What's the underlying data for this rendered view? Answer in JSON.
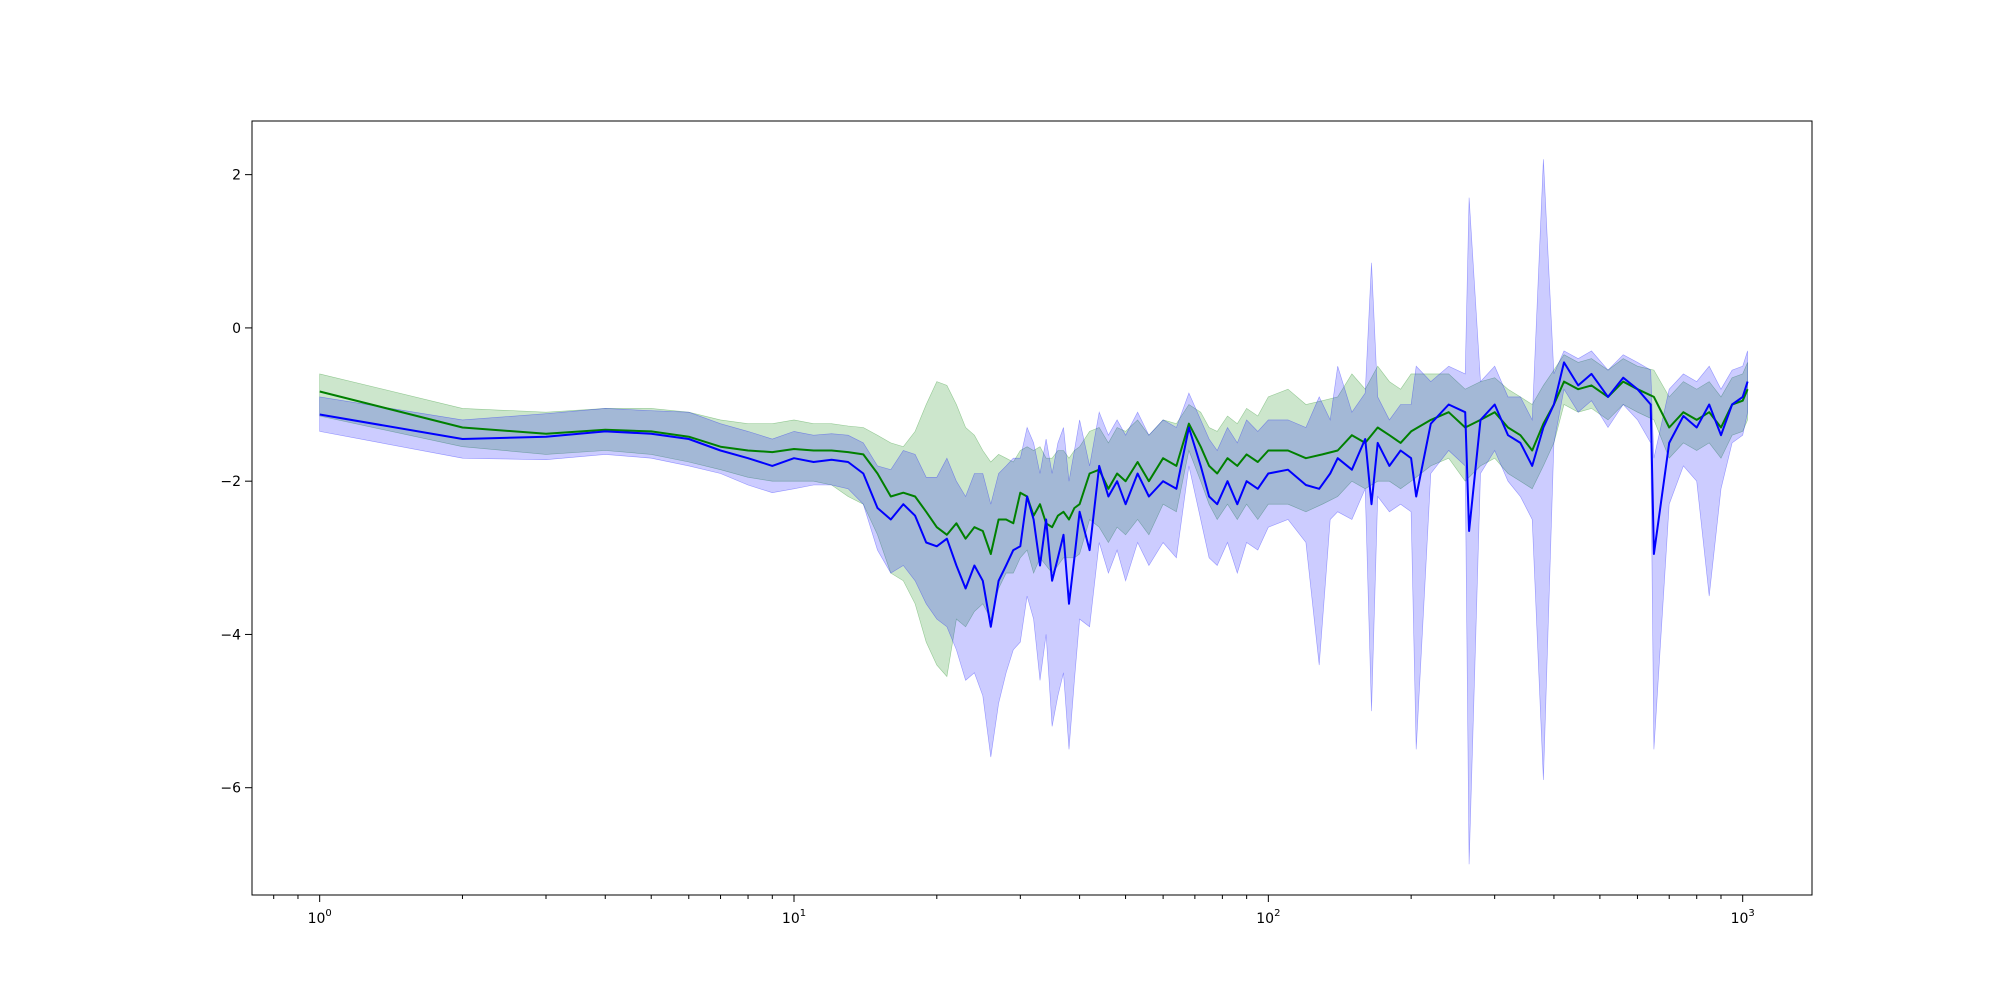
{
  "chart_data": {
    "type": "line",
    "title": "",
    "xlabel": "",
    "ylabel": "",
    "x_scale": "log",
    "xlim": [
      0.72,
      1400
    ],
    "ylim": [
      -7.4,
      2.7
    ],
    "grid": false,
    "x_ticks": [
      {
        "value": 1,
        "base": "10",
        "exp": "0"
      },
      {
        "value": 10,
        "base": "10",
        "exp": "1"
      },
      {
        "value": 100,
        "base": "10",
        "exp": "2"
      },
      {
        "value": 1000,
        "base": "10",
        "exp": "3"
      }
    ],
    "y_ticks": [
      {
        "value": 2,
        "label": "2"
      },
      {
        "value": 0,
        "label": "0"
      },
      {
        "value": -2,
        "label": "−2"
      },
      {
        "value": -4,
        "label": "−4"
      },
      {
        "value": -6,
        "label": "−6"
      }
    ],
    "colors": {
      "green_line": "#008000",
      "green_band": "#008000",
      "blue_line": "#0000ff",
      "blue_band": "#0000ff",
      "band_alpha": 0.2
    },
    "series": [
      {
        "color": "green",
        "x": [
          1,
          2,
          3,
          4,
          5,
          6,
          7,
          8,
          9,
          10,
          11,
          12,
          13,
          14,
          15,
          16,
          17,
          18,
          19,
          20,
          21,
          22,
          23,
          24,
          25,
          26,
          27,
          28,
          29,
          30,
          31,
          32,
          33,
          34,
          35,
          36,
          37,
          38,
          39,
          40,
          42,
          44,
          46,
          48,
          50,
          53,
          56,
          60,
          64,
          68,
          72,
          75,
          78,
          82,
          86,
          90,
          95,
          100,
          110,
          120,
          130,
          140,
          150,
          160,
          170,
          180,
          190,
          200,
          220,
          240,
          260,
          280,
          300,
          320,
          340,
          360,
          380,
          400,
          420,
          450,
          480,
          520,
          560,
          600,
          650,
          700,
          750,
          800,
          850,
          900,
          950,
          1000,
          1024
        ],
        "y": [
          -0.83,
          -1.3,
          -1.38,
          -1.33,
          -1.35,
          -1.42,
          -1.55,
          -1.6,
          -1.62,
          -1.58,
          -1.6,
          -1.6,
          -1.62,
          -1.65,
          -1.9,
          -2.2,
          -2.15,
          -2.2,
          -2.4,
          -2.6,
          -2.7,
          -2.55,
          -2.75,
          -2.6,
          -2.65,
          -2.95,
          -2.5,
          -2.5,
          -2.55,
          -2.15,
          -2.2,
          -2.45,
          -2.3,
          -2.55,
          -2.6,
          -2.45,
          -2.4,
          -2.5,
          -2.35,
          -2.3,
          -1.9,
          -1.85,
          -2.1,
          -1.9,
          -2.0,
          -1.75,
          -2.0,
          -1.7,
          -1.8,
          -1.25,
          -1.55,
          -1.8,
          -1.9,
          -1.7,
          -1.8,
          -1.65,
          -1.75,
          -1.6,
          -1.6,
          -1.7,
          -1.65,
          -1.6,
          -1.4,
          -1.5,
          -1.3,
          -1.4,
          -1.5,
          -1.35,
          -1.2,
          -1.1,
          -1.3,
          -1.2,
          -1.1,
          -1.3,
          -1.4,
          -1.6,
          -1.25,
          -1.0,
          -0.7,
          -0.8,
          -0.75,
          -0.9,
          -0.7,
          -0.8,
          -0.9,
          -1.3,
          -1.1,
          -1.2,
          -1.1,
          -1.3,
          -1.0,
          -0.95,
          -0.8
        ],
        "lower": [
          -1.15,
          -1.55,
          -1.65,
          -1.6,
          -1.65,
          -1.75,
          -1.85,
          -1.95,
          -2.0,
          -2.0,
          -2.0,
          -2.05,
          -2.2,
          -2.3,
          -2.7,
          -3.2,
          -3.3,
          -3.6,
          -4.1,
          -4.4,
          -4.55,
          -3.8,
          -3.9,
          -3.7,
          -3.6,
          -3.8,
          -3.4,
          -3.2,
          -3.2,
          -3.0,
          -2.9,
          -3.2,
          -3.0,
          -3.1,
          -3.2,
          -3.1,
          -3.0,
          -3.0,
          -3.0,
          -2.95,
          -2.5,
          -2.6,
          -2.8,
          -2.6,
          -2.7,
          -2.5,
          -2.7,
          -2.3,
          -2.4,
          -1.6,
          -2.0,
          -2.3,
          -2.5,
          -2.3,
          -2.5,
          -2.3,
          -2.5,
          -2.3,
          -2.3,
          -2.4,
          -2.3,
          -2.2,
          -2.0,
          -2.1,
          -2.0,
          -2.0,
          -2.1,
          -2.0,
          -1.8,
          -1.7,
          -2.0,
          -1.8,
          -1.7,
          -1.9,
          -2.0,
          -2.1,
          -1.8,
          -1.5,
          -1.0,
          -1.1,
          -1.05,
          -1.2,
          -1.0,
          -1.1,
          -1.2,
          -1.7,
          -1.5,
          -1.6,
          -1.5,
          -1.7,
          -1.4,
          -1.35,
          -1.2
        ],
        "upper": [
          -0.6,
          -1.05,
          -1.1,
          -1.05,
          -1.05,
          -1.1,
          -1.2,
          -1.25,
          -1.25,
          -1.2,
          -1.25,
          -1.25,
          -1.28,
          -1.3,
          -1.4,
          -1.5,
          -1.55,
          -1.35,
          -1.0,
          -0.7,
          -0.75,
          -1.0,
          -1.3,
          -1.4,
          -1.6,
          -1.75,
          -1.65,
          -1.7,
          -1.75,
          -1.6,
          -1.55,
          -1.6,
          -1.55,
          -1.7,
          -1.7,
          -1.6,
          -1.6,
          -1.7,
          -1.6,
          -1.55,
          -1.35,
          -1.3,
          -1.5,
          -1.3,
          -1.35,
          -1.2,
          -1.4,
          -1.2,
          -1.25,
          -1.0,
          -1.1,
          -1.3,
          -1.35,
          -1.15,
          -1.25,
          -1.05,
          -1.15,
          -0.9,
          -0.8,
          -1.0,
          -0.95,
          -0.9,
          -0.6,
          -0.8,
          -0.5,
          -0.7,
          -0.8,
          -0.6,
          -0.6,
          -0.6,
          -0.8,
          -0.7,
          -0.65,
          -0.8,
          -0.9,
          -1.0,
          -0.75,
          -0.55,
          -0.35,
          -0.45,
          -0.4,
          -0.55,
          -0.4,
          -0.5,
          -0.55,
          -0.9,
          -0.7,
          -0.8,
          -0.7,
          -0.9,
          -0.65,
          -0.6,
          -0.45
        ]
      },
      {
        "color": "blue",
        "x": [
          1,
          2,
          3,
          4,
          5,
          6,
          7,
          8,
          9,
          10,
          11,
          12,
          13,
          14,
          15,
          16,
          17,
          18,
          19,
          20,
          21,
          22,
          23,
          24,
          25,
          26,
          27,
          28,
          29,
          30,
          31,
          32,
          33,
          34,
          35,
          36,
          37,
          38,
          39,
          40,
          42,
          44,
          46,
          48,
          50,
          53,
          56,
          60,
          64,
          68,
          72,
          75,
          78,
          82,
          86,
          90,
          95,
          100,
          110,
          120,
          128,
          135,
          140,
          150,
          160,
          165,
          170,
          180,
          190,
          200,
          205,
          220,
          240,
          260,
          265,
          280,
          300,
          320,
          340,
          360,
          380,
          400,
          420,
          450,
          480,
          520,
          560,
          600,
          640,
          650,
          700,
          750,
          800,
          850,
          900,
          950,
          1000,
          1024
        ],
        "y": [
          -1.13,
          -1.45,
          -1.42,
          -1.35,
          -1.38,
          -1.45,
          -1.6,
          -1.7,
          -1.8,
          -1.7,
          -1.75,
          -1.72,
          -1.75,
          -1.9,
          -2.35,
          -2.5,
          -2.3,
          -2.45,
          -2.8,
          -2.85,
          -2.75,
          -3.1,
          -3.4,
          -3.1,
          -3.3,
          -3.9,
          -3.3,
          -3.1,
          -2.9,
          -2.85,
          -2.2,
          -2.5,
          -3.1,
          -2.5,
          -3.3,
          -3.0,
          -2.7,
          -3.6,
          -3.0,
          -2.4,
          -2.9,
          -1.8,
          -2.2,
          -2.0,
          -2.3,
          -1.9,
          -2.2,
          -2.0,
          -2.1,
          -1.3,
          -1.8,
          -2.2,
          -2.3,
          -2.0,
          -2.3,
          -2.0,
          -2.1,
          -1.9,
          -1.85,
          -2.05,
          -2.1,
          -1.9,
          -1.7,
          -1.85,
          -1.45,
          -2.3,
          -1.5,
          -1.8,
          -1.6,
          -1.7,
          -2.2,
          -1.25,
          -1.0,
          -1.1,
          -2.65,
          -1.2,
          -1.0,
          -1.4,
          -1.5,
          -1.8,
          -1.3,
          -1.0,
          -0.45,
          -0.75,
          -0.6,
          -0.9,
          -0.65,
          -0.8,
          -1.0,
          -2.95,
          -1.5,
          -1.15,
          -1.3,
          -1.0,
          -1.4,
          -1.0,
          -0.9,
          -0.7
        ],
        "lower": [
          -1.35,
          -1.7,
          -1.72,
          -1.65,
          -1.7,
          -1.8,
          -1.9,
          -2.05,
          -2.15,
          -2.1,
          -2.05,
          -2.05,
          -2.1,
          -2.3,
          -2.9,
          -3.2,
          -3.1,
          -3.3,
          -3.6,
          -3.8,
          -3.9,
          -4.2,
          -4.6,
          -4.5,
          -4.8,
          -5.6,
          -4.9,
          -4.5,
          -4.2,
          -4.1,
          -3.5,
          -3.8,
          -4.6,
          -4.0,
          -5.2,
          -4.8,
          -4.5,
          -5.5,
          -4.6,
          -3.8,
          -3.9,
          -2.8,
          -3.2,
          -2.9,
          -3.3,
          -2.8,
          -3.1,
          -2.8,
          -3.0,
          -1.8,
          -2.5,
          -3.0,
          -3.1,
          -2.8,
          -3.2,
          -2.8,
          -2.9,
          -2.6,
          -2.5,
          -2.8,
          -4.4,
          -2.5,
          -2.4,
          -2.5,
          -2.1,
          -5.0,
          -2.2,
          -2.4,
          -2.3,
          -2.4,
          -5.5,
          -1.9,
          -1.6,
          -1.8,
          -7.0,
          -1.9,
          -1.6,
          -2.0,
          -2.2,
          -2.5,
          -5.9,
          -1.5,
          -0.8,
          -1.1,
          -0.95,
          -1.3,
          -1.0,
          -1.2,
          -1.5,
          -5.5,
          -2.3,
          -1.8,
          -2.0,
          -3.5,
          -2.1,
          -1.5,
          -1.4,
          -1.1
        ],
        "upper": [
          -0.9,
          -1.2,
          -1.12,
          -1.05,
          -1.08,
          -1.1,
          -1.25,
          -1.35,
          -1.45,
          -1.35,
          -1.4,
          -1.38,
          -1.4,
          -1.5,
          -1.8,
          -1.85,
          -1.6,
          -1.65,
          -1.95,
          -1.95,
          -1.7,
          -2.0,
          -2.2,
          -1.9,
          -1.9,
          -2.3,
          -1.9,
          -1.8,
          -1.7,
          -1.7,
          -1.3,
          -1.5,
          -1.9,
          -1.45,
          -1.9,
          -1.5,
          -1.3,
          -2.0,
          -1.6,
          -1.2,
          -1.8,
          -1.1,
          -1.4,
          -1.2,
          -1.4,
          -1.1,
          -1.4,
          -1.2,
          -1.3,
          -0.85,
          -1.2,
          -1.45,
          -1.6,
          -1.3,
          -1.5,
          -1.2,
          -1.35,
          -1.2,
          -1.2,
          -1.3,
          -0.9,
          -1.2,
          -0.5,
          -1.1,
          -0.85,
          0.85,
          -0.9,
          -1.2,
          -1.0,
          -1.0,
          -0.5,
          -0.7,
          -0.5,
          -0.6,
          1.7,
          -0.7,
          -0.5,
          -0.9,
          -0.9,
          -1.2,
          2.2,
          -0.6,
          -0.3,
          -0.4,
          -0.3,
          -0.55,
          -0.35,
          -0.45,
          -0.55,
          -1.7,
          -0.8,
          -0.6,
          -0.7,
          -0.5,
          -0.8,
          -0.55,
          -0.5,
          -0.3
        ]
      }
    ]
  }
}
